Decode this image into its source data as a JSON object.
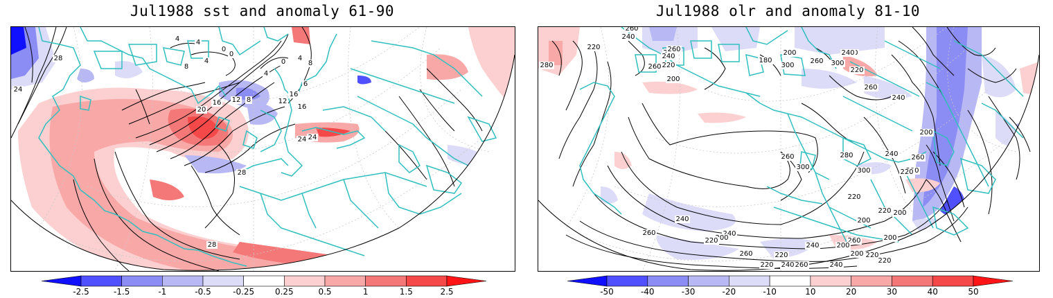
{
  "panels": [
    {
      "title": "Jul1988 sst and anomaly 61-90",
      "contour_labels": [
        "24",
        "28",
        "4",
        "4",
        "0",
        "0",
        "4",
        "8",
        "4",
        "0",
        "4",
        "8",
        "6",
        "12",
        "16",
        "8",
        "20",
        "16",
        "12",
        "16",
        "24",
        "24",
        "28",
        "28"
      ],
      "colorbar": {
        "labels": [
          "-2.5",
          "-1.5",
          "-1",
          "-0.5",
          "-0.25",
          "0.25",
          "0.5",
          "1",
          "1.5",
          "2.5"
        ],
        "colors": [
          "#1010ff",
          "#5050ff",
          "#8c8cf5",
          "#b8b8f4",
          "#dcdcf9",
          "#ffffff",
          "#fcd0d0",
          "#f9a8a8",
          "#f57878",
          "#f54848",
          "#ff1515"
        ]
      }
    },
    {
      "title": "Jul1988 olr and anomaly 81-10",
      "contour_labels": [
        "280",
        "260",
        "240",
        "220",
        "200",
        "260",
        "240",
        "220",
        "260",
        "200",
        "180",
        "200",
        "220",
        "260",
        "300",
        "300",
        "240",
        "220",
        "260",
        "240",
        "200",
        "260",
        "240",
        "300",
        "220",
        "280",
        "260",
        "300",
        "300",
        "220",
        "200",
        "200",
        "260",
        "240",
        "220",
        "220",
        "240",
        "200",
        "220",
        "240",
        "260",
        "200",
        "200",
        "220",
        "220",
        "240",
        "260",
        "260",
        "240",
        "220",
        "200"
      ],
      "colorbar": {
        "labels": [
          "-50",
          "-40",
          "-30",
          "-20",
          "-10",
          "10",
          "20",
          "30",
          "40",
          "50"
        ],
        "colors": [
          "#1010ff",
          "#5050ff",
          "#8c8cf5",
          "#b8b8f4",
          "#dcdcf9",
          "#ffffff",
          "#fcd0d0",
          "#f9a8a8",
          "#f57878",
          "#f54848",
          "#ff1515"
        ]
      }
    }
  ],
  "colors": {
    "coastline": "#2fbfbf",
    "border": "#000000"
  }
}
